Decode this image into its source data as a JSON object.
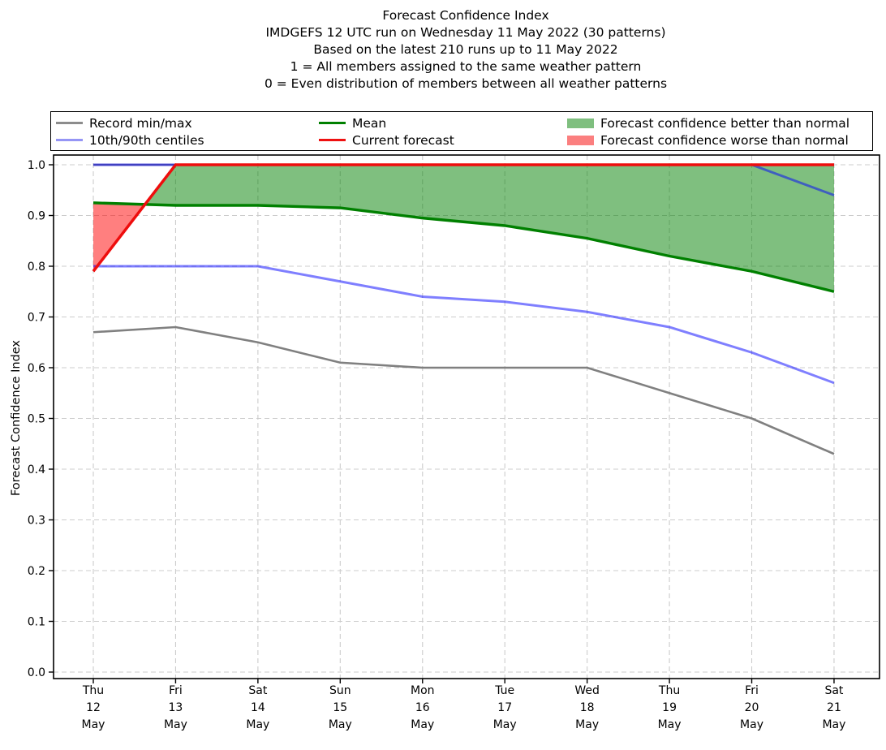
{
  "legend": {
    "items": [
      {
        "label": "Record min/max",
        "type": "line",
        "color": "#8c8c8c"
      },
      {
        "label": "10th/90th centiles",
        "type": "line",
        "color": "#9595f5"
      },
      {
        "label": "Mean",
        "type": "line",
        "color": "#008000"
      },
      {
        "label": "Current forecast",
        "type": "line",
        "color": "#ee1111"
      },
      {
        "label": "Forecast confidence better than normal",
        "type": "patch",
        "color": "#7fbf7f"
      },
      {
        "label": "Forecast confidence worse than normal",
        "type": "patch",
        "color": "#fb7f7f"
      }
    ]
  },
  "chart_data": {
    "type": "line",
    "title_lines": [
      "Forecast Confidence Index",
      "IMDGEFS 12 UTC run on Wednesday 11 May 2022 (30 patterns)",
      "Based on the latest 210 runs up to 11 May 2022",
      "1 = All members assigned to the same weather pattern",
      "0 = Even distribution of members between all weather patterns"
    ],
    "xlabel": "",
    "ylabel": "Forecast Confidence Index",
    "ylim": [
      0.0,
      1.0
    ],
    "y_ticks": [
      0.0,
      0.1,
      0.2,
      0.3,
      0.4,
      0.5,
      0.6,
      0.7,
      0.8,
      0.9,
      1.0
    ],
    "grid": true,
    "legend_position": "top",
    "x_tick_labels": [
      [
        "Thu",
        "12",
        "May"
      ],
      [
        "Fri",
        "13",
        "May"
      ],
      [
        "Sat",
        "14",
        "May"
      ],
      [
        "Sun",
        "15",
        "May"
      ],
      [
        "Mon",
        "16",
        "May"
      ],
      [
        "Tue",
        "17",
        "May"
      ],
      [
        "Wed",
        "18",
        "May"
      ],
      [
        "Thu",
        "19",
        "May"
      ],
      [
        "Fri",
        "20",
        "May"
      ],
      [
        "Sat",
        "21",
        "May"
      ]
    ],
    "series": [
      {
        "name": "record_max",
        "legend": "Record min/max",
        "color": "#808080",
        "values": [
          1.0,
          1.0,
          1.0,
          1.0,
          1.0,
          1.0,
          1.0,
          1.0,
          1.0,
          1.0
        ]
      },
      {
        "name": "record_min",
        "legend": "Record min/max",
        "color": "#808080",
        "values": [
          0.67,
          0.68,
          0.65,
          0.61,
          0.6,
          0.6,
          0.6,
          0.55,
          0.5,
          0.43
        ]
      },
      {
        "name": "centile_10",
        "legend": "10th/90th centiles",
        "color": "rgba(0,0,255,0.5)",
        "values": [
          0.8,
          0.8,
          0.8,
          0.77,
          0.74,
          0.73,
          0.71,
          0.68,
          0.63,
          0.57
        ]
      },
      {
        "name": "centile_90",
        "legend": "10th/90th centiles",
        "color": "rgba(0,0,255,0.5)",
        "values": [
          1.0,
          1.0,
          1.0,
          1.0,
          1.0,
          1.0,
          1.0,
          1.0,
          1.0,
          0.94
        ]
      },
      {
        "name": "mean",
        "legend": "Mean",
        "color": "#008000",
        "values": [
          0.925,
          0.92,
          0.92,
          0.915,
          0.895,
          0.88,
          0.855,
          0.82,
          0.79,
          0.75
        ]
      },
      {
        "name": "current_forecast",
        "legend": "Current forecast",
        "color": "#ee0d0d",
        "values": [
          0.79,
          1.0,
          1.0,
          1.0,
          1.0,
          1.0,
          1.0,
          1.0,
          1.0,
          1.0
        ]
      }
    ],
    "bands": {
      "between": [
        "current_forecast",
        "mean"
      ],
      "better_label": "Forecast confidence better than normal",
      "better_color": "rgba(0,128,0,0.5)",
      "worse_label": "Forecast confidence worse than normal",
      "worse_color": "rgba(255,0,0,0.5)"
    }
  }
}
